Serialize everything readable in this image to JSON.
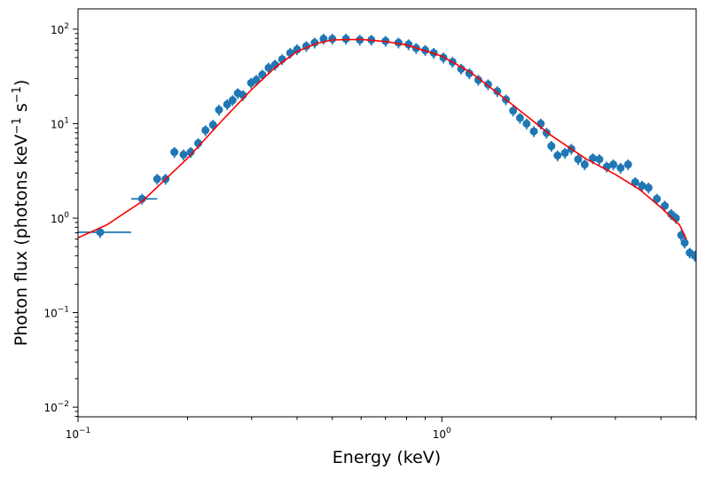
{
  "chart_data": {
    "type": "scatter",
    "xlabel": "Energy (keV)",
    "ylabel": "Photon flux (photons keV",
    "ylabel_sup1": "−1",
    "ylabel_mid": " s",
    "ylabel_sup2": "−1",
    "ylabel_end": ")",
    "xscale": "log",
    "yscale": "log",
    "xlim": [
      0.1,
      5.0
    ],
    "ylim": [
      0.0079,
      164
    ],
    "grid": false,
    "x_ticks": [
      {
        "value": 0.1,
        "base": "10",
        "exp": "−1"
      },
      {
        "value": 1,
        "base": "10",
        "exp": "0"
      }
    ],
    "y_ticks": [
      {
        "value": 100,
        "base": "10",
        "exp": "2"
      },
      {
        "value": 10,
        "base": "10",
        "exp": "1"
      },
      {
        "value": 1,
        "base": "10",
        "exp": "0"
      },
      {
        "value": 0.1,
        "base": "10",
        "exp": "−1"
      },
      {
        "value": 0.01,
        "base": "10",
        "exp": "−2"
      }
    ],
    "data_color": "#1f77b4",
    "model_color": "#ff0000",
    "data": {
      "x": [
        0.115,
        0.15,
        0.165,
        0.174,
        0.184,
        0.195,
        0.204,
        0.214,
        0.224,
        0.235,
        0.244,
        0.257,
        0.266,
        0.275,
        0.284,
        0.299,
        0.309,
        0.321,
        0.334,
        0.348,
        0.364,
        0.383,
        0.4,
        0.424,
        0.447,
        0.473,
        0.5,
        0.545,
        0.595,
        0.64,
        0.7,
        0.76,
        0.81,
        0.85,
        0.9,
        0.95,
        1.01,
        1.07,
        1.13,
        1.19,
        1.26,
        1.34,
        1.42,
        1.5,
        1.57,
        1.64,
        1.71,
        1.79,
        1.87,
        1.94,
        2.0,
        2.08,
        2.18,
        2.27,
        2.37,
        2.47,
        2.6,
        2.71,
        2.84,
        2.96,
        3.1,
        3.25,
        3.4,
        3.55,
        3.7,
        3.9,
        4.1,
        4.27,
        4.4,
        4.55,
        4.65,
        4.8,
        4.96
      ],
      "y": [
        0.71,
        1.6,
        2.6,
        2.6,
        5.0,
        4.7,
        5.0,
        6.2,
        8.5,
        9.7,
        14,
        16,
        17.7,
        21,
        20,
        27,
        29,
        33,
        39,
        42,
        48,
        56,
        61,
        66,
        72,
        79,
        79,
        79,
        77,
        77,
        75,
        72,
        69,
        63,
        60,
        56,
        50,
        45,
        38,
        34,
        29,
        26,
        22,
        18,
        13.7,
        11.5,
        10,
        8.3,
        10,
        8,
        5.8,
        4.6,
        4.9,
        5.4,
        4.2,
        3.7,
        4.3,
        4.2,
        3.5,
        3.7,
        3.4,
        3.7,
        2.4,
        2.2,
        2.1,
        1.6,
        1.35,
        1.1,
        1.0,
        0.66,
        0.55,
        0.43,
        0.4
      ],
      "xerr_low": [
        0.1,
        0.14
      ],
      "xerr_high": [
        0.14,
        0.165
      ],
      "yerr_rel": 0.13
    },
    "model": {
      "x": [
        0.1,
        0.12,
        0.15,
        0.2,
        0.25,
        0.3,
        0.35,
        0.4,
        0.45,
        0.5,
        0.6,
        0.7,
        0.8,
        1.0,
        1.2,
        1.5,
        2.0,
        2.5,
        3.0,
        3.5,
        4.0,
        4.5,
        4.7
      ],
      "y": [
        0.62,
        0.85,
        1.5,
        4.3,
        11,
        23,
        40,
        58,
        70,
        77,
        78,
        74,
        68,
        52,
        35,
        18,
        7.5,
        4.2,
        2.9,
        2.0,
        1.3,
        0.85,
        0.6
      ]
    }
  }
}
